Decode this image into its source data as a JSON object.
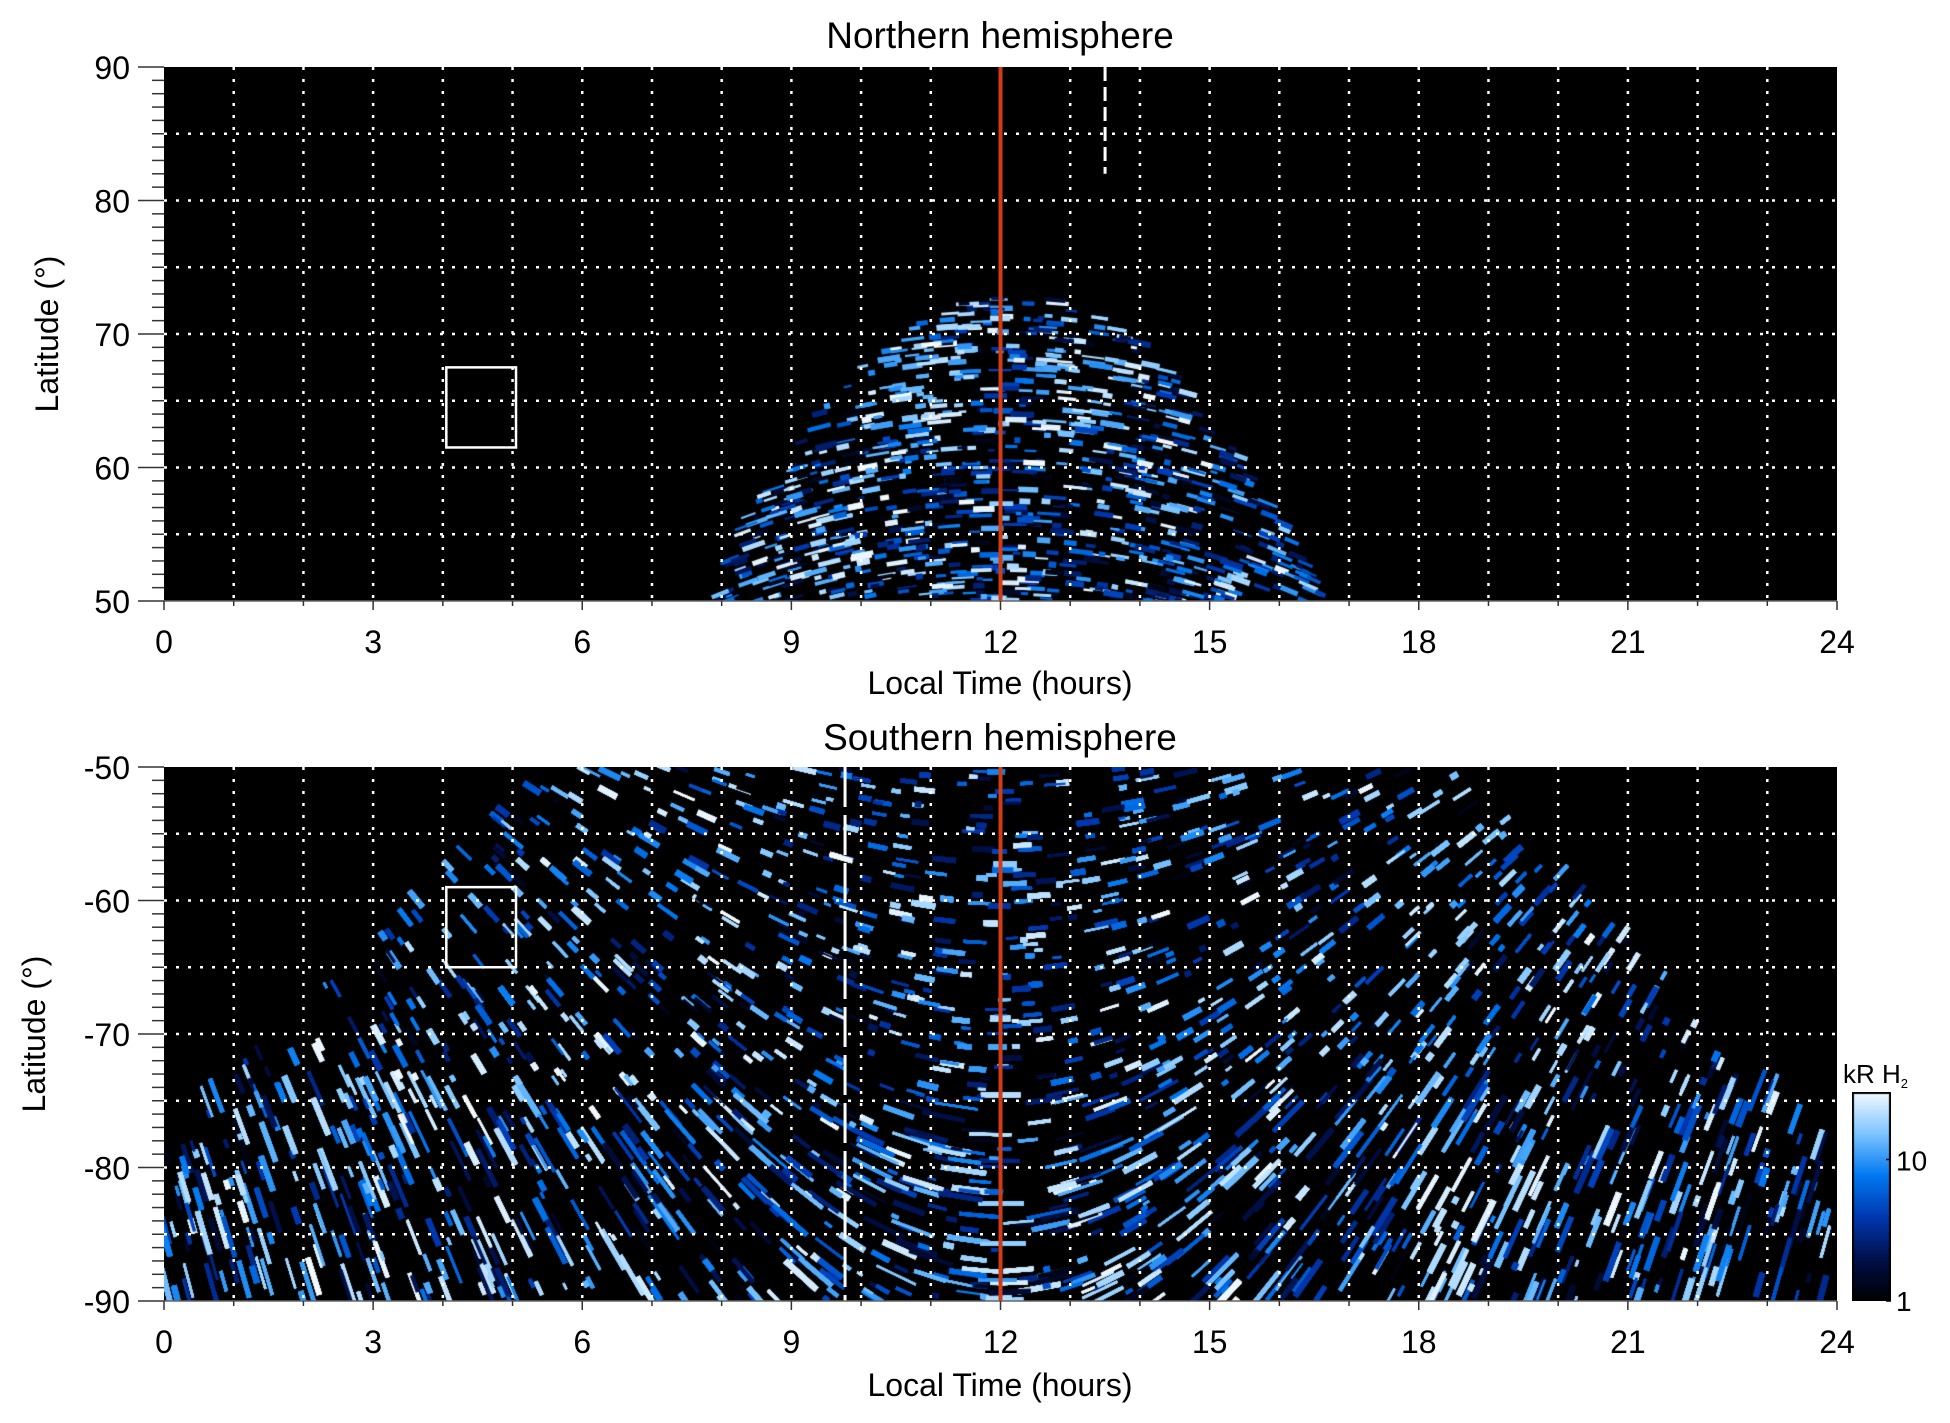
{
  "chart_data": [
    {
      "type": "heatmap",
      "title": "Northern hemisphere",
      "xlabel": "Local Time (hours)",
      "ylabel": "Latitude (°)",
      "xlim": [
        0,
        24
      ],
      "ylim": [
        50,
        90
      ],
      "xticks": [
        "0",
        "3",
        "6",
        "9",
        "12",
        "15",
        "18",
        "21",
        "24"
      ],
      "yticks": [
        "50",
        "60",
        "70",
        "80",
        "90"
      ],
      "grid": true,
      "annotations": {
        "red_line_lt": 12,
        "dashed_line": {
          "lt": 13.5,
          "lat_range": [
            82,
            90
          ]
        },
        "box": {
          "lt_range": [
            4.05,
            5.05
          ],
          "lat_range": [
            61.5,
            67.5
          ]
        }
      }
    },
    {
      "type": "heatmap",
      "title": "Southern hemisphere",
      "xlabel": "Local Time (hours)",
      "ylabel": "Latitude (°)",
      "xlim": [
        0,
        24
      ],
      "ylim": [
        -90,
        -50
      ],
      "xticks": [
        "0",
        "3",
        "6",
        "9",
        "12",
        "15",
        "18",
        "21",
        "24"
      ],
      "yticks": [
        "-90",
        "-80",
        "-70",
        "-60",
        "-50"
      ],
      "grid": true,
      "annotations": {
        "red_line_lt": 12,
        "dashed_line": {
          "lt": 9.77,
          "lat_range": [
            -90,
            -50
          ]
        },
        "box": {
          "lt_range": [
            4.05,
            5.05
          ],
          "lat_range": [
            -65,
            -59
          ]
        }
      }
    }
  ],
  "colorbar": {
    "label": "kR H",
    "label_subscript": "2",
    "scale": "log",
    "range": [
      1,
      30
    ],
    "ticks": [
      "1",
      "10"
    ],
    "colors": [
      "#000000",
      "#00104a",
      "#0038b0",
      "#0078f0",
      "#7cc4ff",
      "#f2f9ff"
    ]
  },
  "colors": {
    "noon_line": "#d23c12",
    "grid": "#ffffff",
    "background": "#000000"
  }
}
